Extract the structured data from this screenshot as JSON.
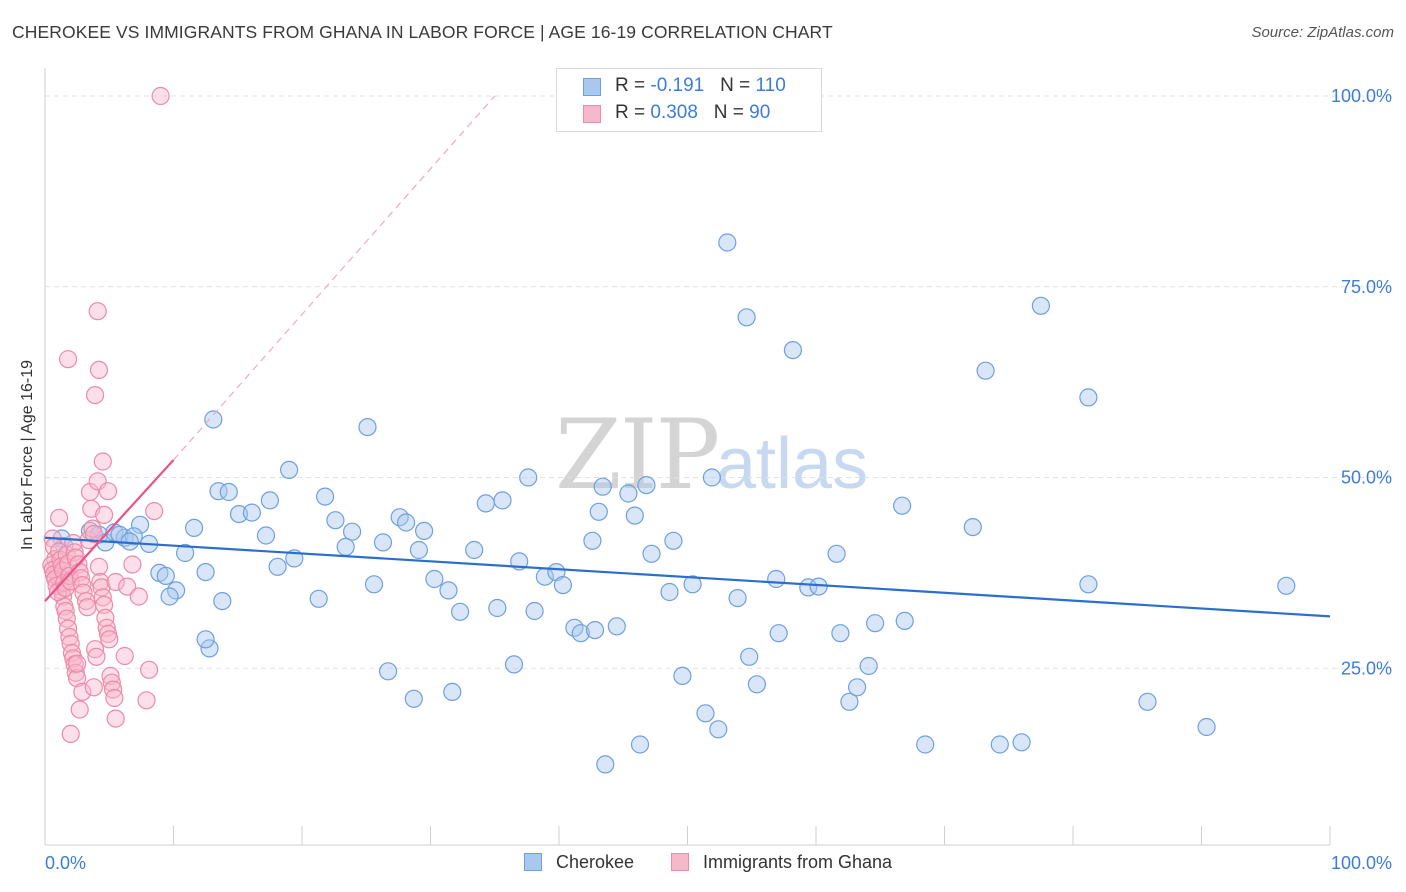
{
  "title": "CHEROKEE VS IMMIGRANTS FROM GHANA IN LABOR FORCE | AGE 16-19 CORRELATION CHART",
  "source": "Source: ZipAtlas.com",
  "watermark": {
    "zip": "ZIP",
    "atlas": "atlas"
  },
  "legend_top": [
    {
      "name": "Cherokee",
      "r_label": "R = ",
      "r_value": "-0.191",
      "n_label": "N = ",
      "n_value": "110"
    },
    {
      "name": "Immigrants from Ghana",
      "r_label": "R = ",
      "r_value": "0.308",
      "n_label": "N = ",
      "n_value": "90"
    }
  ],
  "colors": {
    "cherokee_fill": "#a8c8f0",
    "cherokee_stroke": "#6fa0dd",
    "cherokee_line": "#2a6fcd",
    "ghana_fill": "#f8b8cb",
    "ghana_stroke": "#ec8aa9",
    "ghana_line": "#e8548a",
    "axis_value": "#3b7dd8",
    "grid": "#e2e2e2"
  },
  "chart_data": {
    "type": "scatter",
    "title": "CHEROKEE VS IMMIGRANTS FROM GHANA IN LABOR FORCE | AGE 16-19 CORRELATION CHART",
    "xlabel": "",
    "ylabel": "In Labor Force | Age 16-19",
    "xlim": [
      0,
      100
    ],
    "ylim": [
      0,
      102
    ],
    "x_tick_labels": [
      "0.0%",
      "100.0%"
    ],
    "y_ticks": [
      {
        "value": 25,
        "label": "25.0%"
      },
      {
        "value": 50,
        "label": "50.0%"
      },
      {
        "value": 75,
        "label": "75.0%"
      },
      {
        "value": 100,
        "label": "100.0%"
      }
    ],
    "legend_position": "bottom-center",
    "series": [
      {
        "name": "Cherokee",
        "R": -0.191,
        "N": 110,
        "trend": {
          "x": [
            0,
            100
          ],
          "y": [
            42.1,
            31.8
          ],
          "style": "solid"
        },
        "points": [
          [
            1.3,
            42
          ],
          [
            1.5,
            41
          ],
          [
            3.5,
            43
          ],
          [
            4.2,
            42.5
          ],
          [
            4.7,
            41.5
          ],
          [
            5.4,
            42.8
          ],
          [
            6.2,
            42.1
          ],
          [
            5.8,
            42.5
          ],
          [
            7.4,
            43.8
          ],
          [
            8.1,
            41.3
          ],
          [
            6.9,
            42.3
          ],
          [
            6.6,
            41.6
          ],
          [
            8.9,
            37.5
          ],
          [
            9.4,
            37.1
          ],
          [
            10.2,
            35.2
          ],
          [
            10.9,
            40.1
          ],
          [
            11.6,
            43.4
          ],
          [
            12.5,
            37.6
          ],
          [
            13.5,
            48.2
          ],
          [
            14.3,
            48.1
          ],
          [
            15.1,
            45.2
          ],
          [
            16.1,
            45.4
          ],
          [
            17.2,
            42.4
          ],
          [
            17.5,
            47
          ],
          [
            18.1,
            38.3
          ],
          [
            19,
            51
          ],
          [
            19.4,
            39.4
          ],
          [
            21.3,
            34.1
          ],
          [
            21.8,
            47.5
          ],
          [
            22.6,
            44.4
          ],
          [
            23.4,
            40.9
          ],
          [
            23.9,
            42.9
          ],
          [
            25.6,
            36
          ],
          [
            26.3,
            41.5
          ],
          [
            26.7,
            24.6
          ],
          [
            27.6,
            44.8
          ],
          [
            28.1,
            44.1
          ],
          [
            28.7,
            21
          ],
          [
            29.1,
            40.5
          ],
          [
            29.5,
            43
          ],
          [
            30.3,
            36.7
          ],
          [
            31.4,
            35.2
          ],
          [
            31.7,
            21.9
          ],
          [
            32.3,
            32.4
          ],
          [
            33.4,
            40.5
          ],
          [
            34.3,
            46.6
          ],
          [
            35.2,
            32.9
          ],
          [
            35.6,
            47
          ],
          [
            36.5,
            25.5
          ],
          [
            36.9,
            39
          ],
          [
            37.6,
            50
          ],
          [
            38.1,
            32.5
          ],
          [
            38.9,
            37
          ],
          [
            39.8,
            37.6
          ],
          [
            40.3,
            35.9
          ],
          [
            41.2,
            30.3
          ],
          [
            41.7,
            29.6
          ],
          [
            42.6,
            41.7
          ],
          [
            43.1,
            45.5
          ],
          [
            43.4,
            48.8
          ],
          [
            44.5,
            30.5
          ],
          [
            45.4,
            47.9
          ],
          [
            45.9,
            45
          ],
          [
            46.3,
            15
          ],
          [
            46.8,
            49
          ],
          [
            47.2,
            40
          ],
          [
            48.6,
            35
          ],
          [
            48.9,
            41.7
          ],
          [
            49.6,
            24
          ],
          [
            50.4,
            36
          ],
          [
            51.4,
            19.1
          ],
          [
            51.9,
            50
          ],
          [
            52.4,
            17
          ],
          [
            53.1,
            80.8
          ],
          [
            53.9,
            34.2
          ],
          [
            54.8,
            26.5
          ],
          [
            55.4,
            22.9
          ],
          [
            56.9,
            36.7
          ],
          [
            57.1,
            29.6
          ],
          [
            58.2,
            66.7
          ],
          [
            59.4,
            35.6
          ],
          [
            60.2,
            35.7
          ],
          [
            61.6,
            40
          ],
          [
            61.9,
            29.6
          ],
          [
            62.6,
            20.6
          ],
          [
            63.2,
            22.5
          ],
          [
            64.1,
            25.3
          ],
          [
            64.6,
            30.9
          ],
          [
            66.7,
            46.3
          ],
          [
            66.9,
            31.2
          ],
          [
            68.5,
            15
          ],
          [
            72.2,
            43.5
          ],
          [
            73.2,
            64
          ],
          [
            74.3,
            15
          ],
          [
            76,
            15.3
          ],
          [
            77.5,
            72.5
          ],
          [
            81.2,
            60.5
          ],
          [
            81.2,
            36
          ],
          [
            85.8,
            20.6
          ],
          [
            90.4,
            17.3
          ],
          [
            96.6,
            35.8
          ],
          [
            43.6,
            12.4
          ],
          [
            54.6,
            71
          ],
          [
            42.8,
            30
          ],
          [
            25.1,
            56.6
          ],
          [
            13.1,
            57.6
          ],
          [
            12.8,
            27.6
          ],
          [
            12.5,
            28.8
          ],
          [
            13.8,
            33.8
          ],
          [
            9.7,
            34.4
          ]
        ]
      },
      {
        "name": "Immigrants from Ghana",
        "R": 0.308,
        "N": 90,
        "trend": {
          "x": [
            0,
            10
          ],
          "y": [
            33.8,
            52.3
          ],
          "style": "solid",
          "extension": {
            "x": [
              10,
              35
            ],
            "y": [
              52.3,
              100
            ],
            "style": "dashed"
          }
        },
        "points": [
          [
            0.6,
            42
          ],
          [
            0.7,
            40.9
          ],
          [
            0.8,
            39.3
          ],
          [
            0.9,
            38.2
          ],
          [
            1,
            37.4
          ],
          [
            1.1,
            36.9
          ],
          [
            1.2,
            36.1
          ],
          [
            1.3,
            35.2
          ],
          [
            1.4,
            34.4
          ],
          [
            1.5,
            33.1
          ],
          [
            1.6,
            32.5
          ],
          [
            1.7,
            31.5
          ],
          [
            1.8,
            30.2
          ],
          [
            1.9,
            29.1
          ],
          [
            2,
            28.2
          ],
          [
            2.1,
            27
          ],
          [
            2.2,
            26.3
          ],
          [
            2.3,
            25.5
          ],
          [
            2.4,
            24.4
          ],
          [
            2.5,
            23.7
          ],
          [
            0.5,
            38.5
          ],
          [
            0.6,
            37.9
          ],
          [
            0.7,
            37.3
          ],
          [
            0.8,
            36.7
          ],
          [
            0.9,
            35.8
          ],
          [
            1,
            35
          ],
          [
            1.1,
            40.3
          ],
          [
            1.2,
            39.2
          ],
          [
            1.3,
            38.4
          ],
          [
            1.4,
            37.8
          ],
          [
            1.5,
            36.2
          ],
          [
            1.6,
            35.5
          ],
          [
            1.7,
            39.9
          ],
          [
            1.8,
            38.7
          ],
          [
            1.9,
            37.1
          ],
          [
            2,
            36.4
          ],
          [
            2.2,
            41.4
          ],
          [
            2.3,
            40.2
          ],
          [
            2.4,
            39.5
          ],
          [
            2.6,
            38.6
          ],
          [
            2.7,
            37.6
          ],
          [
            2.8,
            36.8
          ],
          [
            2.9,
            35.9
          ],
          [
            3,
            34.9
          ],
          [
            3.2,
            33.8
          ],
          [
            3.3,
            33
          ],
          [
            3.4,
            41.8
          ],
          [
            3.5,
            48.1
          ],
          [
            3.6,
            45.9
          ],
          [
            3.7,
            43.3
          ],
          [
            3.8,
            42.6
          ],
          [
            3.9,
            27.5
          ],
          [
            4,
            26.5
          ],
          [
            4.1,
            49.5
          ],
          [
            4.2,
            38.3
          ],
          [
            4.3,
            36.3
          ],
          [
            4.4,
            35.6
          ],
          [
            4.5,
            34.3
          ],
          [
            4.6,
            33.3
          ],
          [
            4.7,
            31.6
          ],
          [
            4.8,
            30.3
          ],
          [
            4.9,
            29.5
          ],
          [
            5,
            28.8
          ],
          [
            5.1,
            24
          ],
          [
            5.2,
            23.1
          ],
          [
            5.3,
            22.2
          ],
          [
            5.4,
            21.1
          ],
          [
            5.5,
            18.4
          ],
          [
            2,
            16.4
          ],
          [
            1.8,
            65.5
          ],
          [
            4.2,
            64.1
          ],
          [
            3.9,
            60.8
          ],
          [
            4.1,
            71.8
          ],
          [
            4.5,
            52.1
          ],
          [
            4.9,
            48.2
          ],
          [
            5.5,
            36.3
          ],
          [
            6.8,
            38.6
          ],
          [
            6.4,
            35.7
          ],
          [
            7.3,
            34.4
          ],
          [
            8.5,
            45.6
          ],
          [
            8.1,
            24.8
          ],
          [
            7.9,
            20.8
          ],
          [
            2.9,
            21.9
          ],
          [
            3.8,
            22.5
          ],
          [
            2.5,
            25.6
          ],
          [
            1.1,
            44.7
          ],
          [
            2.7,
            19.6
          ],
          [
            4.6,
            45.1
          ],
          [
            6.2,
            26.6
          ],
          [
            9,
            100
          ]
        ]
      }
    ]
  }
}
